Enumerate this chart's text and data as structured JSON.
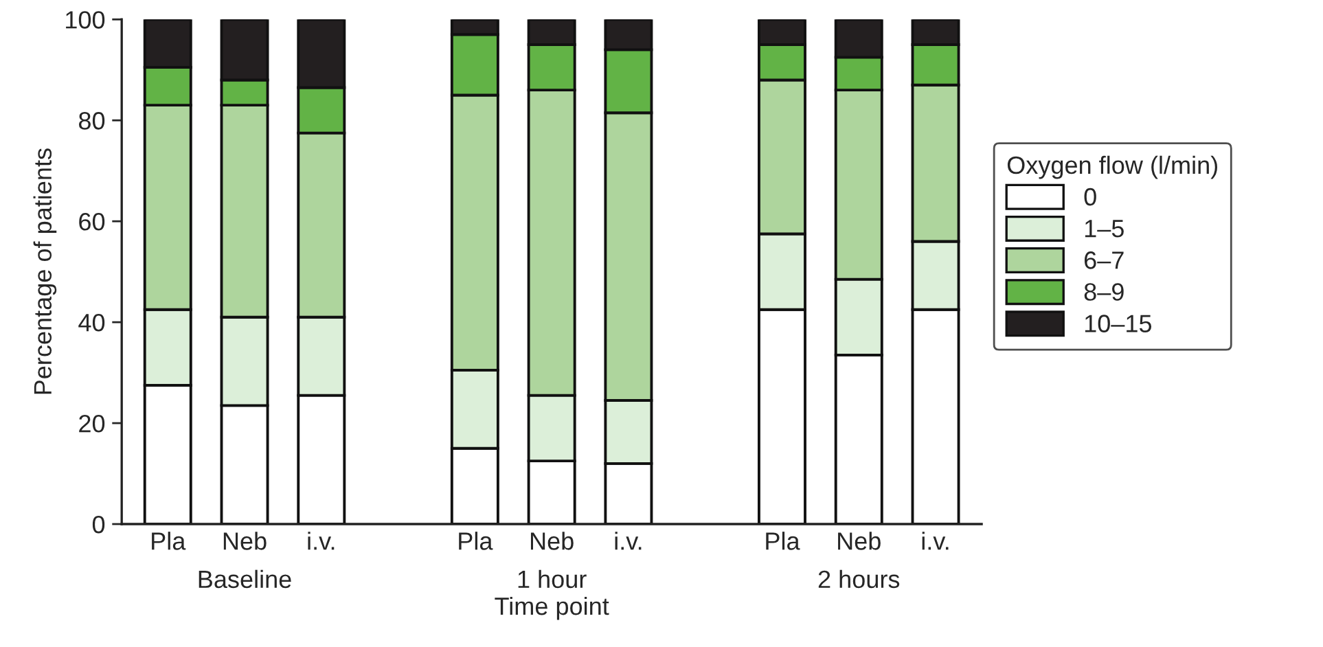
{
  "chart_data": {
    "type": "bar",
    "stacked": true,
    "categories": [
      "Pla",
      "Neb",
      "i.v.",
      null,
      "Pla",
      "Neb",
      "i.v.",
      null,
      "Pla",
      "Neb",
      "i.v."
    ],
    "series": [
      {
        "name": "0",
        "color": "#ffffff",
        "values": [
          27.5,
          23.5,
          25.5,
          null,
          15,
          12.5,
          12,
          null,
          42.5,
          33.5,
          42.5
        ]
      },
      {
        "name": "1–5",
        "color": "#dcefd9",
        "values": [
          15,
          17.5,
          15.5,
          null,
          15.5,
          13,
          12.5,
          null,
          15,
          15,
          13.5
        ]
      },
      {
        "name": "6–7",
        "color": "#aed59d",
        "values": [
          40.5,
          42,
          36.5,
          null,
          54.5,
          60.5,
          57,
          null,
          30.5,
          37.5,
          31
        ]
      },
      {
        "name": "8–9",
        "color": "#62b346",
        "values": [
          7.5,
          5,
          9,
          null,
          12,
          9,
          12.5,
          null,
          7,
          6.5,
          8
        ]
      },
      {
        "name": "10–15",
        "color": "#231f20",
        "values": [
          9.5,
          12,
          13.5,
          null,
          3,
          5,
          6,
          null,
          5,
          7.5,
          5
        ]
      }
    ],
    "ylim": [
      0,
      100
    ],
    "yticks": [
      0,
      20,
      40,
      60,
      80,
      100
    ],
    "ylabel": "Percentage of patients",
    "xlabel": "Time point",
    "legend_title": "Oxygen flow (l/min)",
    "legend": "right",
    "grid": false,
    "annotations": [
      "Baseline",
      "1 hour",
      "2 hours"
    ]
  }
}
